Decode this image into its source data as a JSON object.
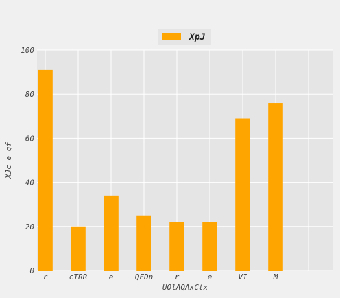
{
  "chart_data": {
    "type": "bar",
    "categories": [
      "r",
      "cTRR",
      "e",
      "QFDn",
      "r",
      "e",
      "VI",
      "M",
      ""
    ],
    "series": [
      {
        "name": "XpJ",
        "values": [
          91,
          20,
          34,
          25,
          22,
          22,
          69,
          76,
          null
        ],
        "color": "#FFA500"
      }
    ],
    "xlabel": "UOlAQAxCtx",
    "ylabel": "XJc e qf",
    "ylim": [
      0,
      100
    ],
    "yticks": [
      0,
      20,
      40,
      60,
      80,
      100
    ],
    "grid": true,
    "legend_position": "top-center",
    "colors": {
      "plot_background": "#e5e5e5",
      "figure_background": "#f0f0f0",
      "grid": "#ffffff"
    }
  }
}
